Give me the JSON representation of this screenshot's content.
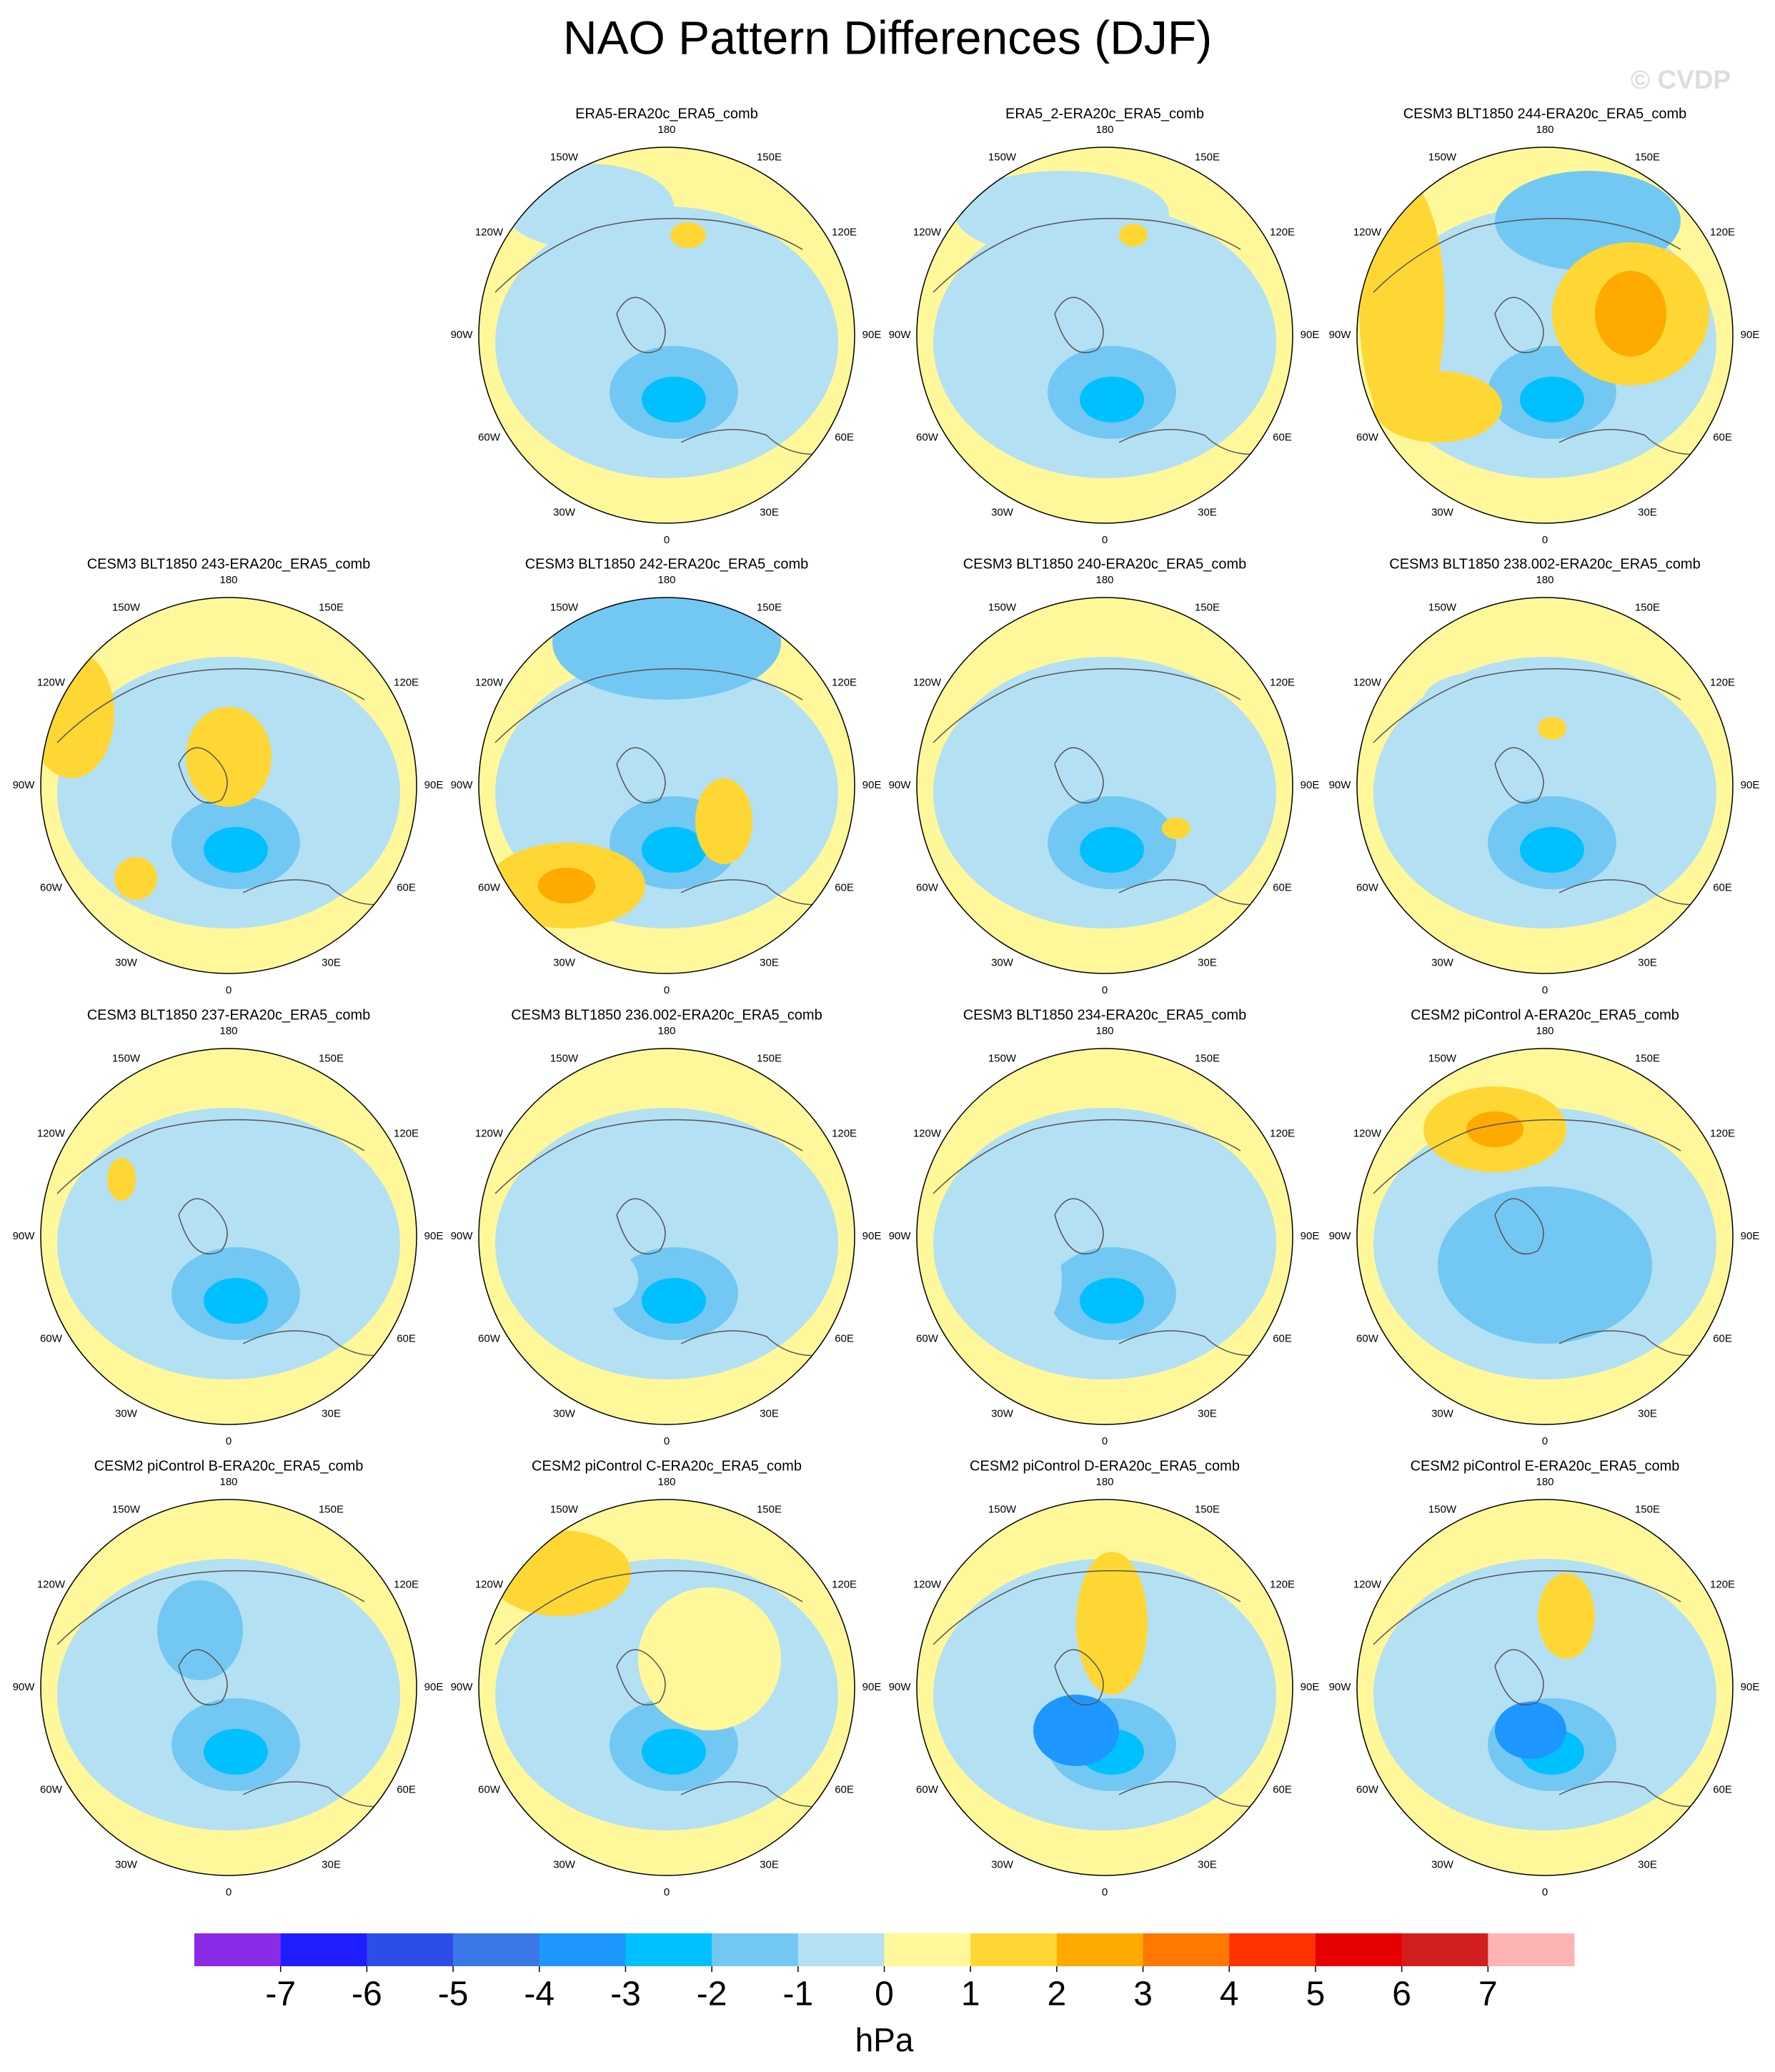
{
  "title": "NAO Pattern Differences (DJF)",
  "watermark": "© CVDP",
  "longitude_labels": [
    "180",
    "150E",
    "120E",
    "90E",
    "60E",
    "30E",
    "0",
    "30W",
    "60W",
    "90W",
    "120W",
    "150W"
  ],
  "panels": [
    {
      "title": "ERA5-ERA20c_ERA5_comb"
    },
    {
      "title": "ERA5_2-ERA20c_ERA5_comb"
    },
    {
      "title": "CESM3 BLT1850 244-ERA20c_ERA5_comb"
    },
    {
      "title": "CESM3 BLT1850 243-ERA20c_ERA5_comb"
    },
    {
      "title": "CESM3 BLT1850 242-ERA20c_ERA5_comb"
    },
    {
      "title": "CESM3 BLT1850 240-ERA20c_ERA5_comb"
    },
    {
      "title": "CESM3 BLT1850 238.002-ERA20c_ERA5_comb"
    },
    {
      "title": "CESM3 BLT1850 237-ERA20c_ERA5_comb"
    },
    {
      "title": "CESM3 BLT1850 236.002-ERA20c_ERA5_comb"
    },
    {
      "title": "CESM3 BLT1850 234-ERA20c_ERA5_comb"
    },
    {
      "title": "CESM2 piControl A-ERA20c_ERA5_comb"
    },
    {
      "title": "CESM2 piControl B-ERA20c_ERA5_comb"
    },
    {
      "title": "CESM2 piControl C-ERA20c_ERA5_comb"
    },
    {
      "title": "CESM2 piControl D-ERA20c_ERA5_comb"
    },
    {
      "title": "CESM2 piControl E-ERA20c_ERA5_comb"
    }
  ],
  "colorbar": {
    "colors": [
      "#8a2be8",
      "#1e1eff",
      "#2d4de8",
      "#3a78e8",
      "#1e96ff",
      "#00c0ff",
      "#72c8f2",
      "#b4e0f4",
      "#fff89a",
      "#ffd735",
      "#ffaa00",
      "#ff7800",
      "#ff3200",
      "#e60000",
      "#d21e1e",
      "#ffb4b4"
    ],
    "ticks": [
      -7,
      -6,
      -5,
      -4,
      -3,
      -2,
      -1,
      0,
      1,
      2,
      3,
      4,
      5,
      6,
      7
    ],
    "label": "hPa"
  }
}
